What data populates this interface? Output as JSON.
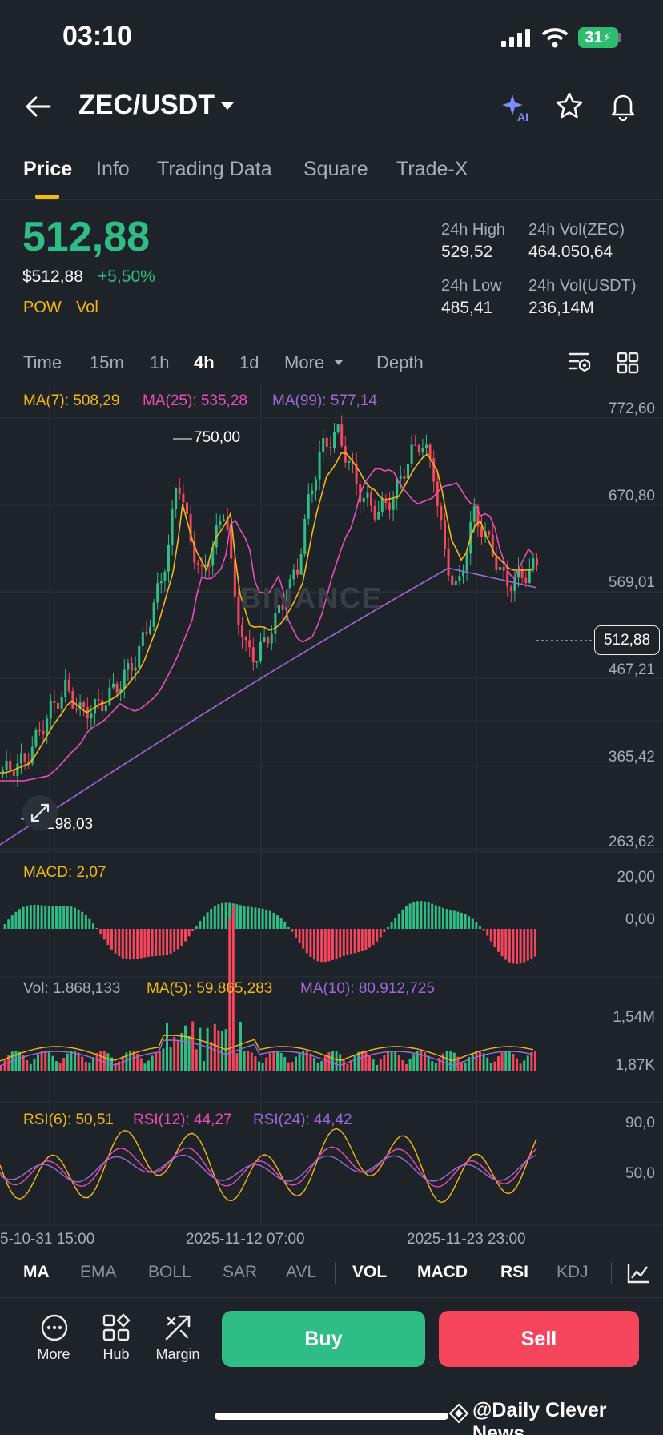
{
  "status_bar": {
    "time": "03:10",
    "battery": "31"
  },
  "header": {
    "pair": "ZEC/USDT"
  },
  "tabs": [
    "Price",
    "Info",
    "Trading Data",
    "Square",
    "Trade-X"
  ],
  "price": {
    "last": "512,88",
    "fiat": "$512,88",
    "change": "+5,50%",
    "tags": [
      "POW",
      "Vol"
    ],
    "stats": {
      "high_label": "24h High",
      "high_value": "529,52",
      "vol_zec_label": "24h Vol(ZEC)",
      "vol_zec_value": "464.050,64",
      "low_label": "24h Low",
      "low_value": "485,41",
      "vol_usdt_label": "24h Vol(USDT)",
      "vol_usdt_value": "236,14M"
    }
  },
  "timeframes": [
    "Time",
    "15m",
    "1h",
    "4h",
    "1d",
    "More",
    "Depth"
  ],
  "active_timeframe": "4h",
  "ma_legend": {
    "ma7": "MA(7): 508,29",
    "ma25": "MA(25): 535,28",
    "ma99": "MA(99): 577,14"
  },
  "price_axis": [
    "772,60",
    "670,80",
    "569,01",
    "467,21",
    "365,42",
    "263,62"
  ],
  "annotations": {
    "high_mark": "750,00",
    "low_mark": "298,03",
    "current_price": "512,88"
  },
  "watermark": "BINANCE",
  "macd": {
    "label": "MACD: 2,07",
    "axis": [
      "20,00",
      "0,00"
    ]
  },
  "vol": {
    "label": "Vol: 1.868,133",
    "ma5": "MA(5): 59.865,283",
    "ma10": "MA(10): 80.912,725",
    "axis": [
      "1,54M",
      "1,87K"
    ]
  },
  "rsi": {
    "rsi6": "RSI(6): 50,51",
    "rsi12": "RSI(12): 44,27",
    "rsi24": "RSI(24): 44,42",
    "axis": [
      "90,0",
      "50,0"
    ]
  },
  "time_axis": [
    "5-10-31 15:00",
    "2025-11-12 07:00",
    "2025-11-23 23:00"
  ],
  "indicator_tabs": [
    "MA",
    "EMA",
    "BOLL",
    "SAR",
    "AVL",
    "VOL",
    "MACD",
    "RSI",
    "KDJ"
  ],
  "bottom_nav": [
    "More",
    "Hub",
    "Margin"
  ],
  "actions": {
    "buy": "Buy",
    "sell": "Sell"
  },
  "credit": "@Daily Clever News",
  "colors": {
    "up": "#2ebd85",
    "down": "#f6465d",
    "ma7": "#f0b90b",
    "ma25": "#e84fb3",
    "ma99": "#9b6bd6",
    "bg": "#1e2329"
  },
  "chart_data": {
    "type": "candlestick",
    "y_range": [
      263.62,
      772.6
    ],
    "ma_series": [
      {
        "name": "MA(7)",
        "value": 508.29
      },
      {
        "name": "MA(25)",
        "value": 535.28
      },
      {
        "name": "MA(99)",
        "value": 577.14
      }
    ]
  }
}
